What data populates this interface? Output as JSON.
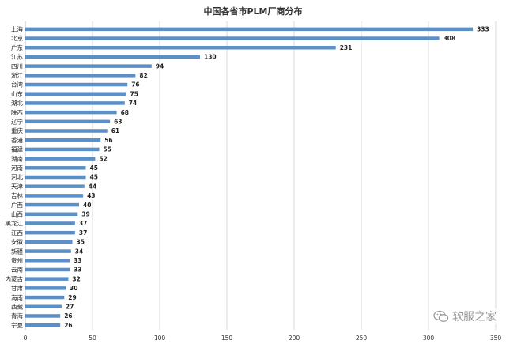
{
  "chart_data": {
    "type": "bar",
    "orientation": "horizontal",
    "title": "中国各省市PLM厂商分布",
    "categories": [
      "上海",
      "北京",
      "广东",
      "江苏",
      "四川",
      "浙江",
      "台湾",
      "山东",
      "湖北",
      "陕西",
      "辽宁",
      "重庆",
      "香港",
      "福建",
      "湖南",
      "河南",
      "河北",
      "天津",
      "吉林",
      "广西",
      "山西",
      "黑龙江",
      "江西",
      "安徽",
      "新疆",
      "贵州",
      "云南",
      "内蒙古",
      "甘肃",
      "海南",
      "西藏",
      "青海",
      "宁夏"
    ],
    "values": [
      333,
      308,
      231,
      130,
      94,
      82,
      76,
      75,
      74,
      68,
      63,
      61,
      56,
      55,
      52,
      45,
      45,
      44,
      43,
      40,
      39,
      37,
      37,
      35,
      34,
      33,
      33,
      32,
      30,
      29,
      27,
      26,
      26
    ],
    "xlim": [
      0,
      350
    ],
    "xticks": [
      0,
      50,
      100,
      150,
      200,
      250,
      300,
      350
    ],
    "grid": true,
    "xlabel": "",
    "ylabel": "",
    "bar_color": "#5b8fc7"
  },
  "watermark": {
    "text": "软服之家"
  }
}
